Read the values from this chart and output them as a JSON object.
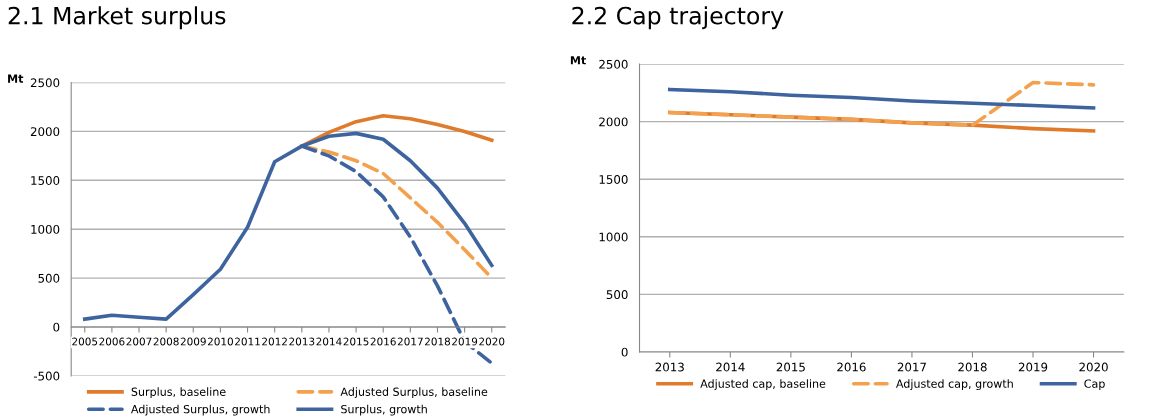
{
  "chart_data": [
    {
      "type": "line",
      "title": "2.1 Market surplus",
      "ylabel": "Mt",
      "categories": [
        "2005",
        "2006",
        "2007",
        "2008",
        "2009",
        "2010",
        "2011",
        "2012",
        "2013",
        "2014",
        "2015",
        "2016",
        "2017",
        "2018",
        "2019",
        "2020"
      ],
      "series": [
        {
          "name": "Surplus, baseline",
          "color": "#e07b2c",
          "line_style": "solid",
          "values": [
            null,
            null,
            null,
            null,
            null,
            null,
            null,
            null,
            1850,
            1990,
            2100,
            2160,
            2130,
            2070,
            2000,
            1910
          ]
        },
        {
          "name": "Adjusted Surplus, baseline",
          "color": "#f3a14e",
          "line_style": "dashed",
          "values": [
            null,
            null,
            null,
            null,
            null,
            null,
            null,
            null,
            1850,
            1790,
            1700,
            1570,
            1320,
            1070,
            790,
            500
          ]
        },
        {
          "name": "Adjusted Surplus, growth",
          "color": "#3e64a0",
          "line_style": "dashed",
          "values": [
            null,
            null,
            null,
            null,
            null,
            null,
            null,
            null,
            1850,
            1750,
            1590,
            1330,
            920,
            420,
            -150,
            -370
          ]
        },
        {
          "name": "Surplus, growth",
          "color": "#3e64a0",
          "line_style": "solid",
          "values": [
            80,
            120,
            100,
            80,
            330,
            590,
            1020,
            1690,
            1850,
            1950,
            1980,
            1920,
            1700,
            1420,
            1060,
            630
          ]
        }
      ],
      "ylim": [
        -500,
        2500
      ],
      "yticks": [
        -500,
        0,
        500,
        1000,
        1500,
        2000,
        2500
      ],
      "grid": "y",
      "legend": "bottom",
      "marker": "none"
    },
    {
      "type": "line",
      "title": "2.2 Cap trajectory",
      "ylabel": "Mt",
      "categories": [
        "2013",
        "2014",
        "2015",
        "2016",
        "2017",
        "2018",
        "2019",
        "2020"
      ],
      "series": [
        {
          "name": "Adjusted cap, baseline",
          "color": "#e07b2c",
          "line_style": "solid",
          "values": [
            2080,
            2060,
            2040,
            2020,
            1990,
            1970,
            1940,
            1920
          ]
        },
        {
          "name": "Adjusted cap, growth",
          "color": "#f3a14e",
          "line_style": "dashed",
          "values": [
            2080,
            2060,
            2040,
            2020,
            1990,
            1970,
            2340,
            2320
          ]
        },
        {
          "name": "Cap",
          "color": "#3e64a0",
          "line_style": "solid",
          "values": [
            2280,
            2260,
            2230,
            2210,
            2180,
            2160,
            2140,
            2120
          ]
        }
      ],
      "ylim": [
        0,
        2500
      ],
      "yticks": [
        0,
        500,
        1000,
        1500,
        2000,
        2500
      ],
      "grid": "y",
      "legend": "bottom",
      "marker": "none"
    }
  ]
}
